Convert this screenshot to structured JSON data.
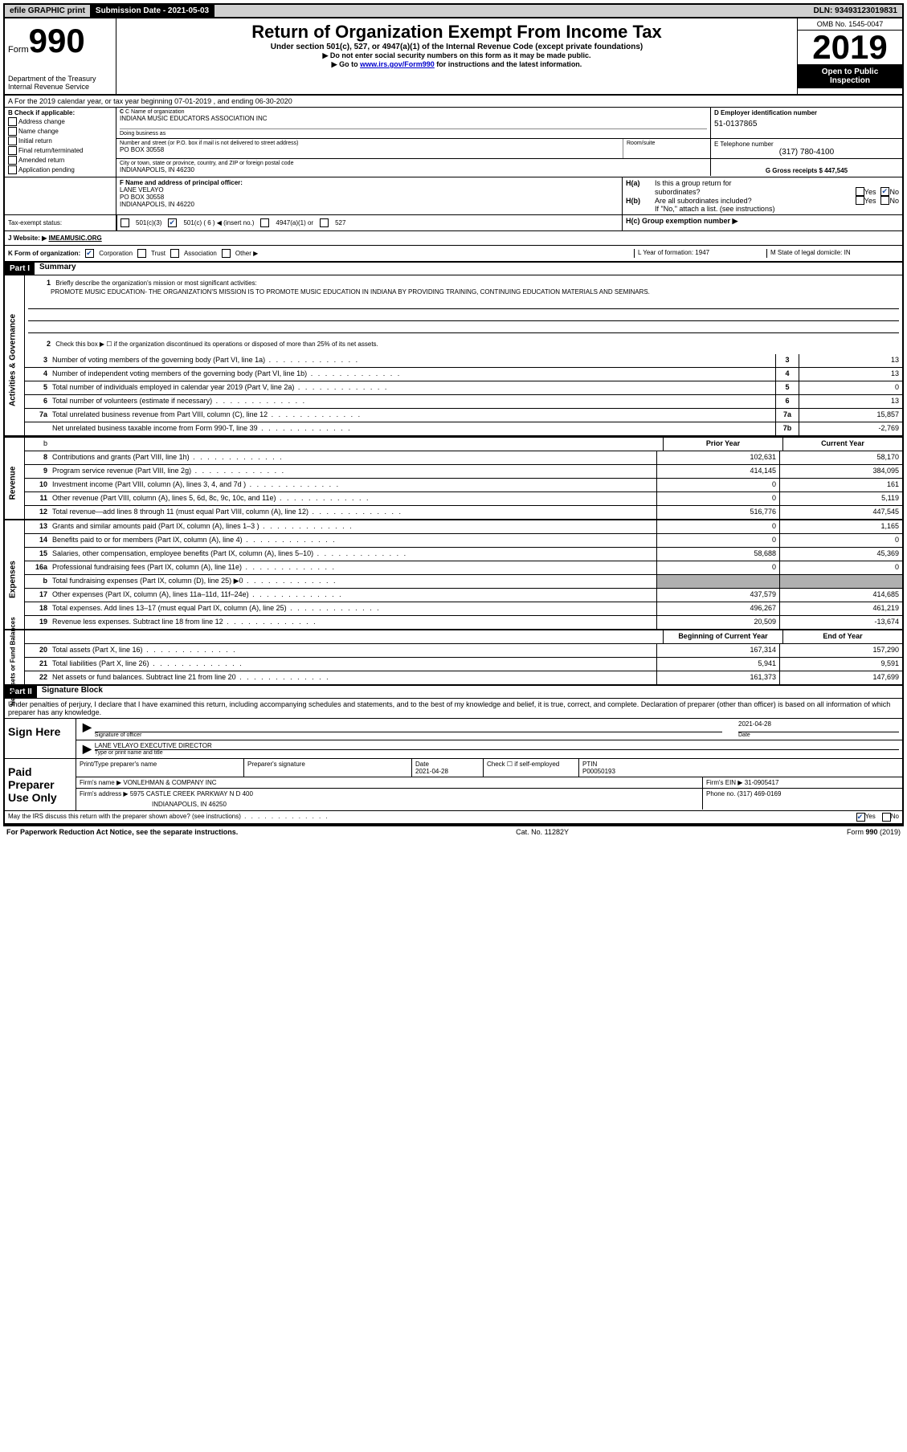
{
  "topbar": {
    "efile": "efile GRAPHIC print",
    "submission_label": "Submission Date - 2021-05-03",
    "dln": "DLN: 93493123019831"
  },
  "header": {
    "form_word": "Form",
    "form_num": "990",
    "dept": "Department of the Treasury",
    "irs": "Internal Revenue Service",
    "title": "Return of Organization Exempt From Income Tax",
    "sub": "Under section 501(c), 527, or 4947(a)(1) of the Internal Revenue Code (except private foundations)",
    "note1": "▶ Do not enter social security numbers on this form as it may be made public.",
    "note2_pre": "▶ Go to ",
    "note2_link": "www.irs.gov/Form990",
    "note2_post": " for instructions and the latest information.",
    "omb": "OMB No. 1545-0047",
    "year": "2019",
    "open": "Open to Public Inspection"
  },
  "lineA": "A For the 2019 calendar year, or tax year beginning 07-01-2019    , and ending 06-30-2020",
  "sectionB": {
    "title": "B Check if applicable:",
    "items": [
      "Address change",
      "Name change",
      "Initial return",
      "Final return/terminated",
      "Amended return",
      "Application pending"
    ]
  },
  "sectionC": {
    "name_label": "C Name of organization",
    "name": "INDIANA MUSIC EDUCATORS ASSOCIATION INC",
    "dba_label": "Doing business as",
    "street_label": "Number and street (or P.O. box if mail is not delivered to street address)",
    "street": "PO BOX 30558",
    "room_label": "Room/suite",
    "city_label": "City or town, state or province, country, and ZIP or foreign postal code",
    "city": "INDIANAPOLIS, IN  46230"
  },
  "sectionD": {
    "label": "D Employer identification number",
    "val": "51-0137865"
  },
  "sectionE": {
    "label": "E Telephone number",
    "val": "(317) 780-4100"
  },
  "sectionG": {
    "label": "G Gross receipts $ 447,545"
  },
  "sectionF": {
    "label": "F  Name and address of principal officer:",
    "name": "LANE VELAYO",
    "addr1": "PO BOX 30558",
    "addr2": "INDIANAPOLIS, IN  46220"
  },
  "sectionH": {
    "ha": "H(a)  Is this a group return for",
    "ha2": "subordinates?",
    "hb": "H(b)  Are all subordinates included?",
    "hnote": "If \"No,\" attach a list. (see instructions)",
    "hc": "H(c)  Group exemption number ▶",
    "yes": "Yes",
    "no": "No"
  },
  "sectionI": {
    "label": "Tax-exempt status:",
    "opt1": "501(c)(3)",
    "opt2": "501(c) ( 6 ) ◀ (insert no.)",
    "opt3": "4947(a)(1) or",
    "opt4": "527"
  },
  "sectionJ": {
    "label": "J   Website: ▶",
    "val": "IMEAMUSIC.ORG"
  },
  "sectionK": {
    "label": "K Form of organization:",
    "opts": [
      "Corporation",
      "Trust",
      "Association",
      "Other ▶"
    ]
  },
  "sectionL": {
    "label": "L Year of formation: 1947"
  },
  "sectionM": {
    "label": "M State of legal domicile: IN"
  },
  "part1": {
    "header": "Part I",
    "title": "Summary",
    "line1": "Briefly describe the organization's mission or most significant activities:",
    "mission": "PROMOTE MUSIC EDUCATION- THE ORGANIZATION'S MISSION IS TO PROMOTE MUSIC EDUCATION IN INDIANA BY PROVIDING TRAINING, CONTINUING EDUCATION MATERIALS AND SEMINARS.",
    "line2": "Check this box ▶ ☐  if the organization discontinued its operations or disposed of more than 25% of its net assets.",
    "rows_ag": [
      {
        "n": "3",
        "d": "Number of voting members of the governing body (Part VI, line 1a)",
        "b": "3",
        "v": "13"
      },
      {
        "n": "4",
        "d": "Number of independent voting members of the governing body (Part VI, line 1b)",
        "b": "4",
        "v": "13"
      },
      {
        "n": "5",
        "d": "Total number of individuals employed in calendar year 2019 (Part V, line 2a)",
        "b": "5",
        "v": "0"
      },
      {
        "n": "6",
        "d": "Total number of volunteers (estimate if necessary)",
        "b": "6",
        "v": "13"
      },
      {
        "n": "7a",
        "d": "Total unrelated business revenue from Part VIII, column (C), line 12",
        "b": "7a",
        "v": "15,857"
      },
      {
        "n": "",
        "d": "Net unrelated business taxable income from Form 990-T, line 39",
        "b": "7b",
        "v": "-2,769"
      }
    ],
    "colhead_prior": "Prior Year",
    "colhead_current": "Current Year",
    "rows_rev": [
      {
        "n": "8",
        "d": "Contributions and grants (Part VIII, line 1h)",
        "p": "102,631",
        "c": "58,170"
      },
      {
        "n": "9",
        "d": "Program service revenue (Part VIII, line 2g)",
        "p": "414,145",
        "c": "384,095"
      },
      {
        "n": "10",
        "d": "Investment income (Part VIII, column (A), lines 3, 4, and 7d )",
        "p": "0",
        "c": "161"
      },
      {
        "n": "11",
        "d": "Other revenue (Part VIII, column (A), lines 5, 6d, 8c, 9c, 10c, and 11e)",
        "p": "0",
        "c": "5,119"
      },
      {
        "n": "12",
        "d": "Total revenue—add lines 8 through 11 (must equal Part VIII, column (A), line 12)",
        "p": "516,776",
        "c": "447,545"
      }
    ],
    "rows_exp": [
      {
        "n": "13",
        "d": "Grants and similar amounts paid (Part IX, column (A), lines 1–3 )",
        "p": "0",
        "c": "1,165"
      },
      {
        "n": "14",
        "d": "Benefits paid to or for members (Part IX, column (A), line 4)",
        "p": "0",
        "c": "0"
      },
      {
        "n": "15",
        "d": "Salaries, other compensation, employee benefits (Part IX, column (A), lines 5–10)",
        "p": "58,688",
        "c": "45,369"
      },
      {
        "n": "16a",
        "d": "Professional fundraising fees (Part IX, column (A), line 11e)",
        "p": "0",
        "c": "0"
      },
      {
        "n": "b",
        "d": "Total fundraising expenses (Part IX, column (D), line 25) ▶0",
        "p": "",
        "c": "",
        "grey": true
      },
      {
        "n": "17",
        "d": "Other expenses (Part IX, column (A), lines 11a–11d, 11f–24e)",
        "p": "437,579",
        "c": "414,685"
      },
      {
        "n": "18",
        "d": "Total expenses. Add lines 13–17 (must equal Part IX, column (A), line 25)",
        "p": "496,267",
        "c": "461,219"
      },
      {
        "n": "19",
        "d": "Revenue less expenses. Subtract line 18 from line 12",
        "p": "20,509",
        "c": "-13,674"
      }
    ],
    "colhead_begin": "Beginning of Current Year",
    "colhead_end": "End of Year",
    "rows_net": [
      {
        "n": "20",
        "d": "Total assets (Part X, line 16)",
        "p": "167,314",
        "c": "157,290"
      },
      {
        "n": "21",
        "d": "Total liabilities (Part X, line 26)",
        "p": "5,941",
        "c": "9,591"
      },
      {
        "n": "22",
        "d": "Net assets or fund balances. Subtract line 21 from line 20",
        "p": "161,373",
        "c": "147,699"
      }
    ],
    "side_ag": "Activities & Governance",
    "side_rev": "Revenue",
    "side_exp": "Expenses",
    "side_net": "Net Assets or Fund Balances"
  },
  "part2": {
    "header": "Part II",
    "title": "Signature Block",
    "decl": "Under penalties of perjury, I declare that I have examined this return, including accompanying schedules and statements, and to the best of my knowledge and belief, it is true, correct, and complete. Declaration of preparer (other than officer) is based on all information of which preparer has any knowledge.",
    "sign_here": "Sign Here",
    "sig_officer": "Signature of officer",
    "sig_date": "Date",
    "sig_date_val": "2021-04-28",
    "sig_name": "LANE VELAYO  EXECUTIVE DIRECTOR",
    "sig_type": "Type or print name and title",
    "paid": "Paid Preparer Use Only",
    "prep_name_label": "Print/Type preparer's name",
    "prep_sig_label": "Preparer's signature",
    "prep_date_label": "Date",
    "prep_date": "2021-04-28",
    "prep_check": "Check ☐  if self-employed",
    "ptin_label": "PTIN",
    "ptin": "P00050193",
    "firm_name_label": "Firm's name     ▶",
    "firm_name": "VONLEHMAN & COMPANY INC",
    "firm_ein_label": "Firm's EIN ▶",
    "firm_ein": "31-0905417",
    "firm_addr_label": "Firm's address ▶",
    "firm_addr1": "5975 CASTLE CREEK PARKWAY N D 400",
    "firm_addr2": "INDIANAPOLIS, IN  46250",
    "firm_phone_label": "Phone no.",
    "firm_phone": "(317) 469-0169",
    "discuss": "May the IRS discuss this return with the preparer shown above? (see instructions)",
    "yes": "Yes",
    "no": "No"
  },
  "footer": {
    "left": "For Paperwork Reduction Act Notice, see the separate instructions.",
    "mid": "Cat. No. 11282Y",
    "right": "Form 990 (2019)"
  }
}
